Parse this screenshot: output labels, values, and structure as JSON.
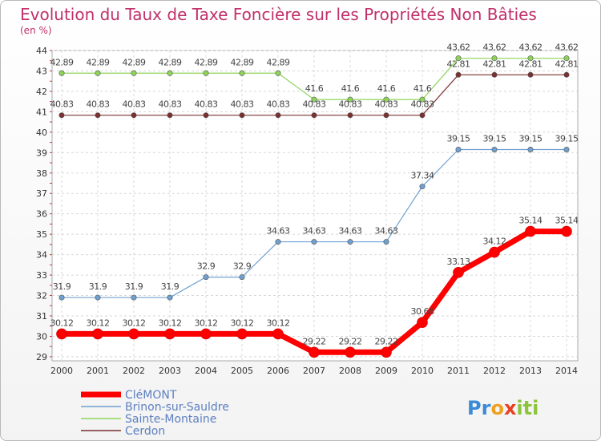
{
  "chart_data": {
    "type": "line",
    "title": "Evolution du Taux de Taxe Foncière sur les Propriétés Non Bâties",
    "subtitle": "(en %)",
    "x": [
      "2000",
      "2001",
      "2002",
      "2003",
      "2004",
      "2005",
      "2006",
      "2007",
      "2008",
      "2009",
      "2010",
      "2011",
      "2012",
      "2013",
      "2014"
    ],
    "ylim": [
      28.8,
      44
    ],
    "yticks": [
      29,
      30,
      31,
      32,
      33,
      34,
      35,
      36,
      37,
      38,
      39,
      40,
      41,
      42,
      43,
      44
    ],
    "grid": true,
    "legend_position": "bottom-left",
    "series": [
      {
        "name": "CléMONT",
        "color": "#ff0000",
        "labels": [
          "30.12",
          "30.12",
          "30.12",
          "30.12",
          "30.12",
          "30.12",
          "30.12",
          "29.22",
          "29.22",
          "29.22",
          "30.68",
          "33.13",
          "34.12",
          "35.14",
          "35.14"
        ],
        "values": [
          30.12,
          30.12,
          30.12,
          30.12,
          30.12,
          30.12,
          30.12,
          29.22,
          29.22,
          29.22,
          30.68,
          33.13,
          34.12,
          35.14,
          35.14
        ]
      },
      {
        "name": "Brinon-sur-Sauldre",
        "color": "#6fa0d0",
        "labels": [
          "31.9",
          "31.9",
          "31.9",
          "31.9",
          "32.9",
          "32.9",
          "34.63",
          "34.63",
          "34.63",
          "34.63",
          "37.34",
          "39.15",
          "39.15",
          "39.15",
          "39.15"
        ],
        "values": [
          31.9,
          31.9,
          31.9,
          31.9,
          32.9,
          32.9,
          34.63,
          34.63,
          34.63,
          34.63,
          37.34,
          39.15,
          39.15,
          39.15,
          39.15
        ]
      },
      {
        "name": "Sainte-Montaine",
        "color": "#8ed45a",
        "labels": [
          "42.89",
          "42.89",
          "42.89",
          "42.89",
          "42.89",
          "42.89",
          "42.89",
          "41.6",
          "41.6",
          "41.6",
          "41.6",
          "43.62",
          "43.62",
          "43.62",
          "43.62"
        ],
        "values": [
          42.89,
          42.89,
          42.89,
          42.89,
          42.89,
          42.89,
          42.89,
          41.6,
          41.6,
          41.6,
          41.6,
          43.62,
          43.62,
          43.62,
          43.62
        ]
      },
      {
        "name": "Cerdon",
        "color": "#7a3030",
        "labels": [
          "40.83",
          "40.83",
          "40.83",
          "40.83",
          "40.83",
          "40.83",
          "40.83",
          "40.83",
          "40.83",
          "40.83",
          "40.83",
          "42.81",
          "42.81",
          "42.81",
          "42.81"
        ],
        "values": [
          40.83,
          40.83,
          40.83,
          40.83,
          40.83,
          40.83,
          40.83,
          40.83,
          40.83,
          40.83,
          40.83,
          42.81,
          42.81,
          42.81,
          42.81
        ]
      }
    ]
  },
  "logo": {
    "letters": [
      "P",
      "r",
      "o",
      "x",
      "i",
      "t",
      "i"
    ],
    "colors": [
      "#3a8ad6",
      "#3a8ad6",
      "#f0a020",
      "#e84020",
      "#8cc43c",
      "#8cc43c",
      "#8cc43c"
    ]
  }
}
